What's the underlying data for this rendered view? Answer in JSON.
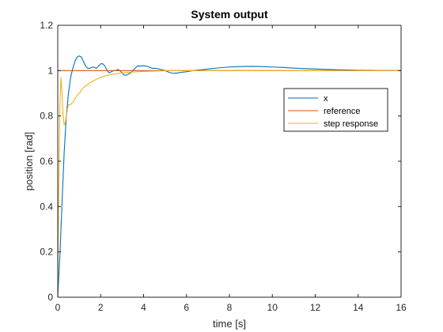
{
  "chart_data": {
    "type": "line",
    "title": "System output",
    "xlabel": "time [s]",
    "ylabel": "position [rad]",
    "xlim": [
      0,
      16
    ],
    "ylim": [
      0,
      1.2
    ],
    "xticks": [
      0,
      2,
      4,
      6,
      8,
      10,
      12,
      14,
      16
    ],
    "xtick_labels": [
      "0",
      "2",
      "4",
      "6",
      "8",
      "10",
      "12",
      "14",
      "16"
    ],
    "yticks": [
      0,
      0.2,
      0.4,
      0.6,
      0.8,
      1,
      1.2
    ],
    "ytick_labels": [
      "0",
      "0.2",
      "0.4",
      "0.6",
      "0.8",
      "1",
      "1.2"
    ],
    "grid": false,
    "legend_position": "top-right",
    "series": [
      {
        "name": "x",
        "color": "#0072BD",
        "x": [
          0,
          0.1,
          0.2,
          0.3,
          0.4,
          0.5,
          0.6,
          0.7,
          0.8,
          0.9,
          1.0,
          1.1,
          1.2,
          1.3,
          1.4,
          1.5,
          1.6,
          1.7,
          1.8,
          1.9,
          2.0,
          2.1,
          2.2,
          2.3,
          2.4,
          2.5,
          2.6,
          2.7,
          2.8,
          2.9,
          3.0,
          3.1,
          3.2,
          3.3,
          3.4,
          3.5,
          3.6,
          3.7,
          3.8,
          3.9,
          4.0,
          4.2,
          4.4,
          4.6,
          4.8,
          5.0,
          5.2,
          5.4,
          5.6,
          5.8,
          6.0,
          6.3,
          6.6,
          7.0,
          7.5,
          8.0,
          8.5,
          9.0,
          9.5,
          10.0,
          10.5,
          11.0,
          12.0,
          13.0,
          14.0,
          15.0,
          16.0
        ],
        "y": [
          0,
          0.18,
          0.42,
          0.64,
          0.8,
          0.9,
          0.97,
          1.01,
          1.04,
          1.06,
          1.065,
          1.06,
          1.04,
          1.02,
          1.01,
          1.01,
          1.015,
          1.015,
          1.01,
          1.02,
          1.03,
          1.03,
          1.02,
          1.0,
          0.99,
          0.995,
          1.0,
          1.0,
          1.005,
          1.0,
          0.99,
          0.98,
          0.98,
          0.985,
          0.99,
          1.0,
          1.01,
          1.02,
          1.02,
          1.02,
          1.022,
          1.018,
          1.01,
          1.01,
          1.005,
          1.0,
          0.992,
          0.988,
          0.99,
          0.993,
          0.995,
          1.0,
          1.003,
          1.007,
          1.012,
          1.016,
          1.018,
          1.019,
          1.018,
          1.016,
          1.014,
          1.011,
          1.007,
          1.004,
          1.002,
          1.001,
          1.0
        ]
      },
      {
        "name": "reference",
        "color": "#D95319",
        "x": [
          0,
          16
        ],
        "y": [
          1,
          1
        ]
      },
      {
        "name": "step response",
        "color": "#EDB120",
        "x": [
          0,
          0.05,
          0.1,
          0.15,
          0.2,
          0.25,
          0.3,
          0.35,
          0.4,
          0.45,
          0.5,
          0.55,
          0.6,
          0.7,
          0.8,
          0.9,
          1.0,
          1.2,
          1.4,
          1.6,
          1.8,
          2.0,
          2.2,
          2.5,
          2.8,
          3.0,
          3.5,
          4.0,
          4.5,
          5.0,
          5.5,
          6.0,
          7.0,
          8.0,
          10.0,
          12.0,
          16.0
        ],
        "y": [
          0,
          0.5,
          0.85,
          0.97,
          0.9,
          0.8,
          0.76,
          0.77,
          0.8,
          0.83,
          0.85,
          0.85,
          0.85,
          0.86,
          0.875,
          0.89,
          0.9,
          0.925,
          0.94,
          0.952,
          0.962,
          0.97,
          0.976,
          0.983,
          0.988,
          0.99,
          0.994,
          0.996,
          0.998,
          0.999,
          0.9995,
          1.0,
          1.0,
          1.0,
          1.0,
          1.0,
          1.0
        ]
      }
    ]
  }
}
